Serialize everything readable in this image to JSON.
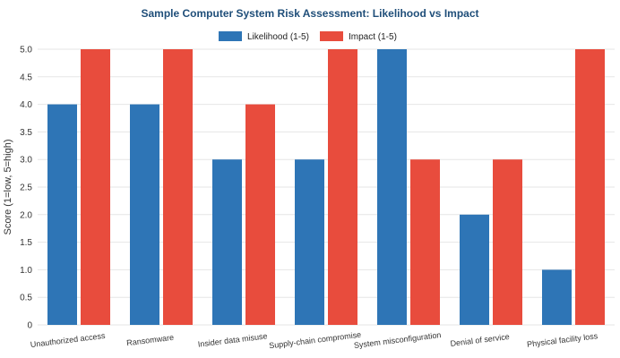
{
  "chart_data": {
    "type": "bar",
    "title": "Sample Computer System Risk Assessment: Likelihood vs Impact",
    "xlabel": "",
    "ylabel": "Score (1=low, 5=high)",
    "ylim": [
      0,
      5
    ],
    "yticks": [
      "0",
      "0.5",
      "1.0",
      "1.5",
      "2.0",
      "2.5",
      "3.0",
      "3.5",
      "4.0",
      "4.5",
      "5.0"
    ],
    "grid": true,
    "legend_position": "top-center",
    "categories": [
      "Unauthorized access",
      "Ransomware",
      "Insider data misuse",
      "Supply-chain compromise",
      "System misconfiguration",
      "Denial of service",
      "Physical facility loss"
    ],
    "series": [
      {
        "name": "Likelihood (1-5)",
        "color": "#2e75b6",
        "values": [
          4,
          4,
          3,
          3,
          5,
          2,
          1
        ]
      },
      {
        "name": "Impact (1-5)",
        "color": "#e84c3d",
        "values": [
          5,
          5,
          4,
          5,
          3,
          3,
          5
        ]
      }
    ]
  }
}
